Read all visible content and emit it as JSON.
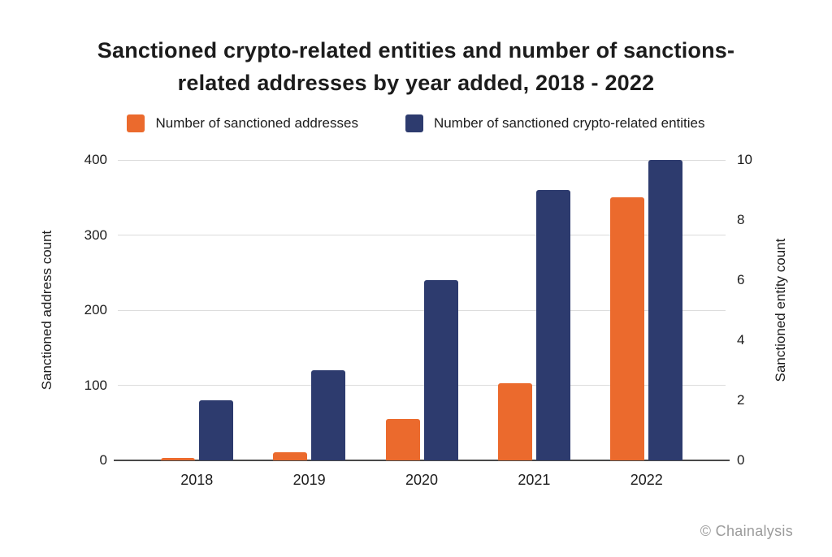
{
  "title": {
    "line1": "Sanctioned crypto-related entities and number of sanctions-",
    "line2": "related addresses by year added, 2018 - 2022"
  },
  "footer": {
    "credit": "© Chainalysis"
  },
  "chart_data": {
    "type": "bar",
    "categories": [
      "2018",
      "2019",
      "2020",
      "2021",
      "2022"
    ],
    "series": [
      {
        "name": "Number of sanctioned addresses",
        "axis": "left",
        "color": "#EB6A2D",
        "values": [
          3,
          11,
          55,
          103,
          350
        ]
      },
      {
        "name": "Number of sanctioned crypto-related entities",
        "axis": "right",
        "color": "#2D3B6E",
        "values": [
          2,
          3,
          6,
          9,
          10
        ]
      }
    ],
    "left_axis": {
      "label": "Sanctioned address count",
      "ticks": [
        0,
        100,
        200,
        300,
        400
      ],
      "min": 0,
      "max": 400
    },
    "right_axis": {
      "label": "Sanctioned entity count",
      "ticks": [
        0,
        2,
        4,
        6,
        8,
        10
      ],
      "min": 0,
      "max": 10
    },
    "grid": true,
    "legend_position": "top",
    "gridline_color": "#dcdcdc",
    "axis_line_color": "#4a4a4a"
  }
}
